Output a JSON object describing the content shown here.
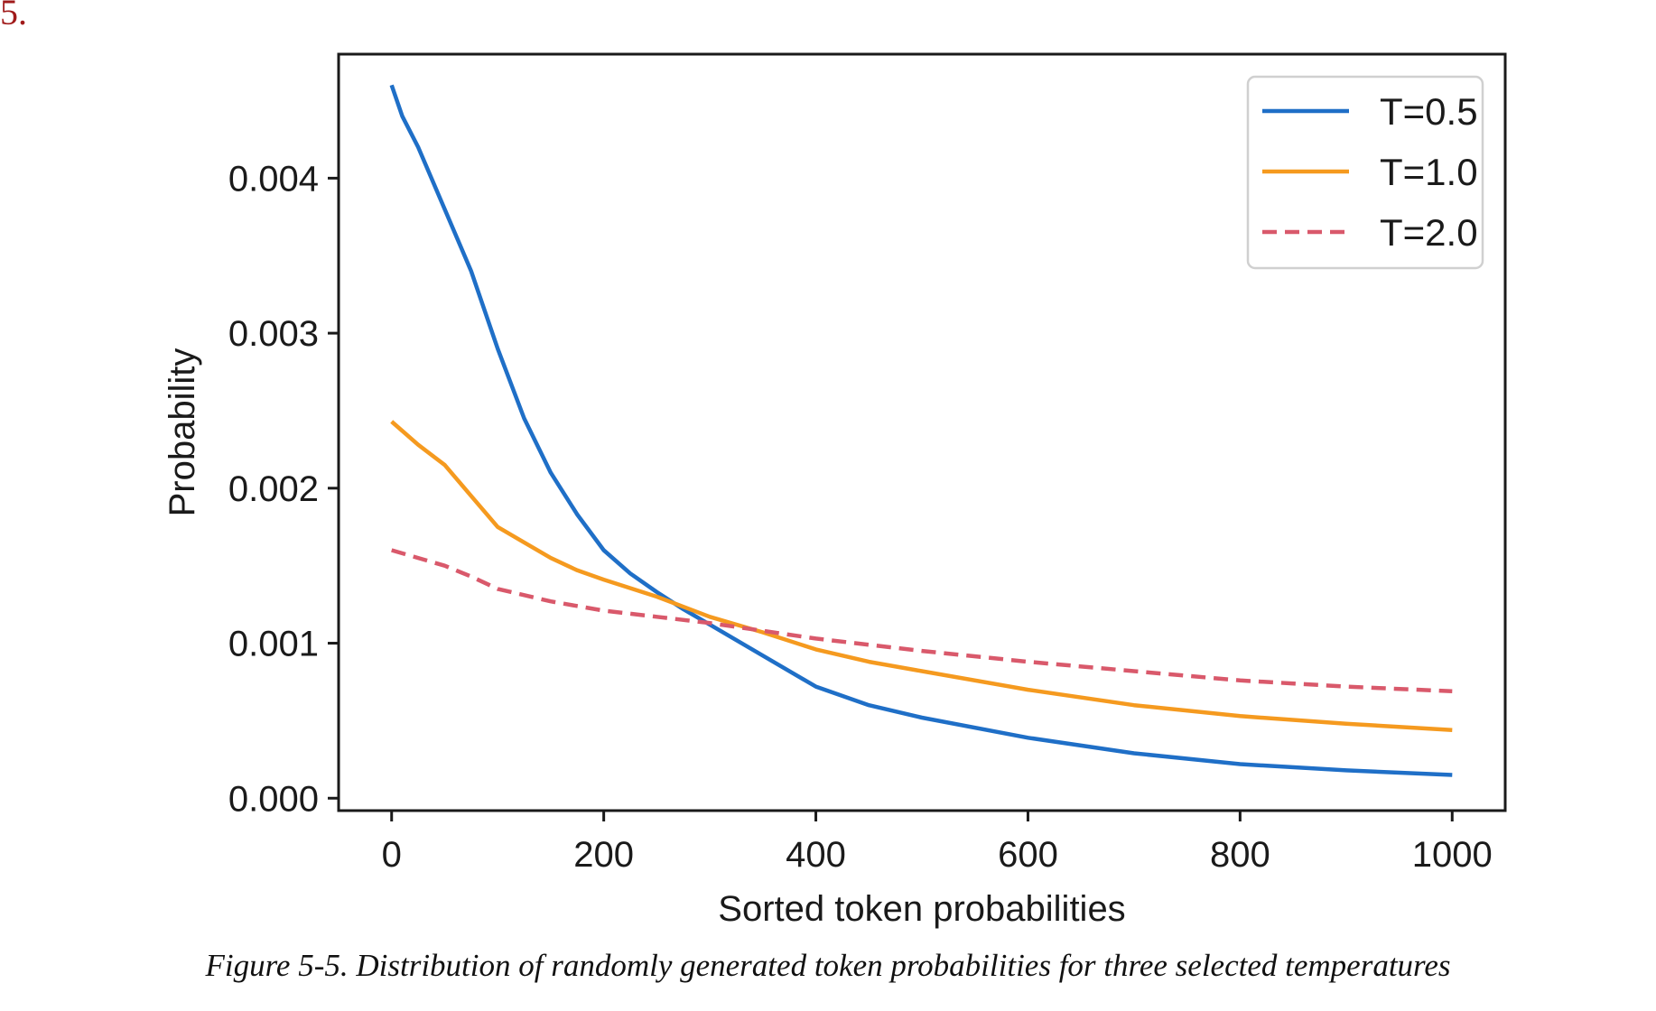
{
  "page_mark": "5.",
  "caption": "Figure 5-5. Distribution of randomly generated token probabilities for three selected temperatures",
  "chart_data": {
    "type": "line",
    "title": "",
    "xlabel": "Sorted token probabilities",
    "ylabel": "Probability",
    "xlim": [
      -50,
      1050
    ],
    "ylim": [
      -8e-05,
      0.0048
    ],
    "xticks": [
      0,
      200,
      400,
      600,
      800,
      1000
    ],
    "xtick_labels": [
      "0",
      "200",
      "400",
      "600",
      "800",
      "1000"
    ],
    "yticks": [
      0.0,
      0.001,
      0.002,
      0.003,
      0.004
    ],
    "ytick_labels": [
      "0.000",
      "0.001",
      "0.002",
      "0.003",
      "0.004"
    ],
    "grid": false,
    "legend_position": "top-right",
    "series": [
      {
        "name": "T=0.5",
        "color": "#1f6fc7",
        "dash": "solid",
        "x": [
          0,
          10,
          25,
          50,
          75,
          100,
          125,
          150,
          175,
          200,
          225,
          250,
          275,
          300,
          350,
          400,
          450,
          500,
          600,
          700,
          800,
          900,
          1000
        ],
        "y": [
          0.0046,
          0.0044,
          0.0042,
          0.0038,
          0.0034,
          0.0029,
          0.00245,
          0.0021,
          0.00183,
          0.0016,
          0.00145,
          0.00133,
          0.00122,
          0.00112,
          0.00092,
          0.00072,
          0.0006,
          0.00052,
          0.00039,
          0.00029,
          0.00022,
          0.00018,
          0.00015
        ]
      },
      {
        "name": "T=1.0",
        "color": "#f59a1f",
        "dash": "solid",
        "x": [
          0,
          25,
          50,
          75,
          100,
          125,
          150,
          175,
          200,
          250,
          300,
          350,
          400,
          450,
          500,
          600,
          700,
          800,
          900,
          1000
        ],
        "y": [
          0.00243,
          0.00228,
          0.00215,
          0.00195,
          0.00175,
          0.00165,
          0.00155,
          0.00147,
          0.00141,
          0.0013,
          0.00117,
          0.00107,
          0.00096,
          0.00088,
          0.00082,
          0.0007,
          0.0006,
          0.00053,
          0.00048,
          0.00044
        ]
      },
      {
        "name": "T=2.0",
        "color": "#d9596b",
        "dash": "dashed",
        "x": [
          0,
          25,
          50,
          75,
          100,
          150,
          200,
          250,
          300,
          350,
          400,
          500,
          600,
          700,
          800,
          900,
          1000
        ],
        "y": [
          0.0016,
          0.00155,
          0.0015,
          0.00143,
          0.00135,
          0.00127,
          0.00121,
          0.00117,
          0.00113,
          0.00108,
          0.00103,
          0.00095,
          0.00088,
          0.00082,
          0.00076,
          0.00072,
          0.00069
        ]
      }
    ]
  }
}
